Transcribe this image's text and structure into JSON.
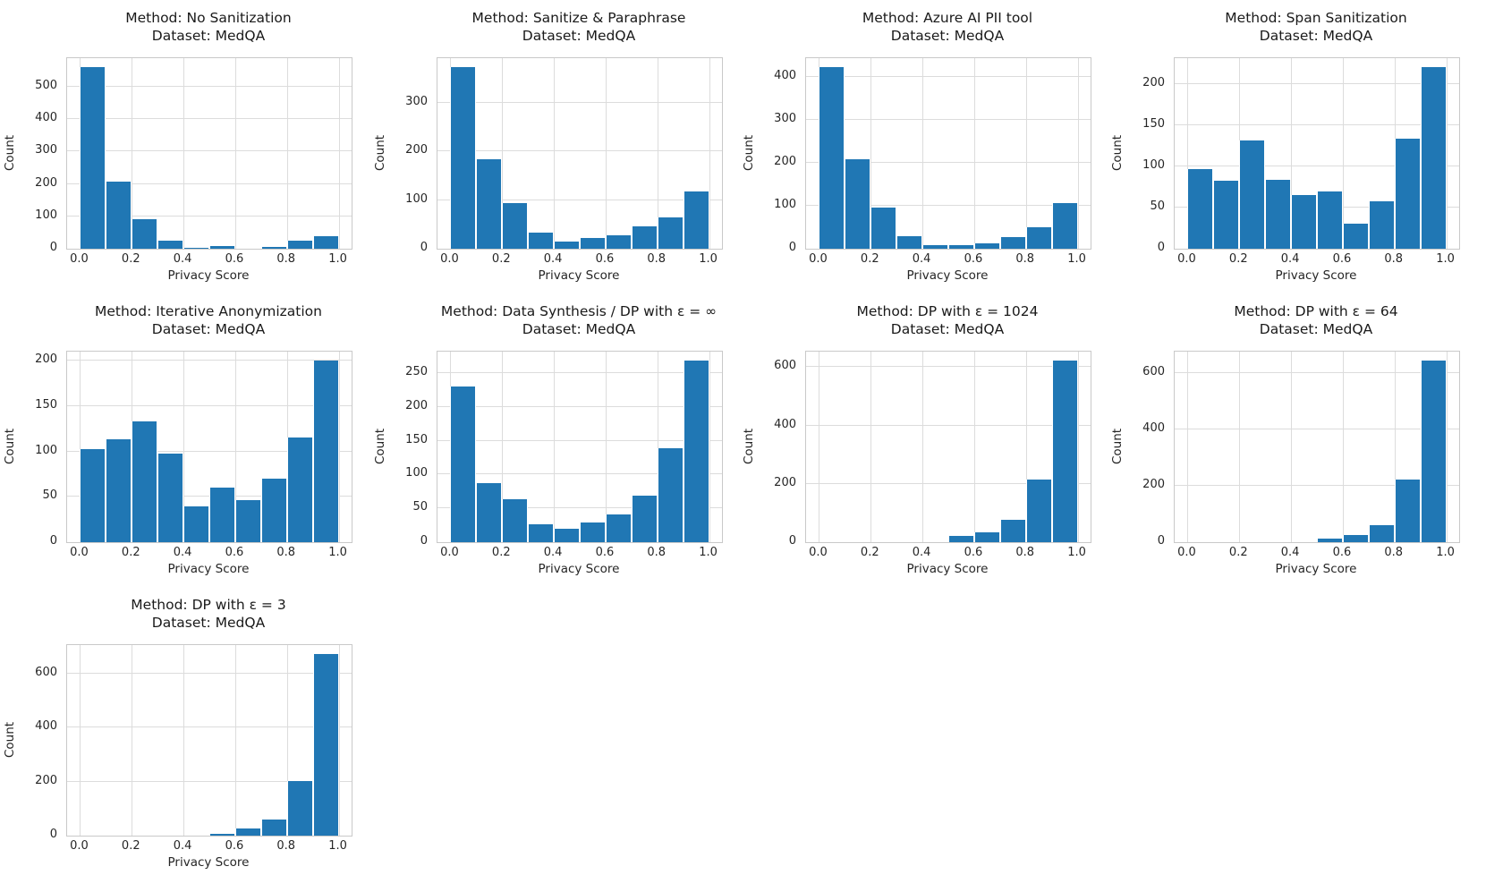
{
  "figure": {
    "background": "#ffffff",
    "bar_color": "#2077b4",
    "grid_color": "#dcdcdc",
    "spine_color": "#c9c9c9",
    "text_color": "#262626"
  },
  "chart_data": [
    {
      "type": "bar",
      "id": "no-sanitization",
      "row": 0,
      "col": 0,
      "title_lines": [
        "Method: No Sanitization",
        "Dataset: MedQA"
      ],
      "xlabel": "Privacy Score",
      "ylabel": "Count",
      "bin_start": 0.0,
      "bin_width": 0.1,
      "bin_edges": [
        0.0,
        0.1,
        0.2,
        0.3,
        0.4,
        0.5,
        0.6,
        0.7,
        0.8,
        0.9,
        1.0
      ],
      "values": [
        560,
        206,
        92,
        25,
        4,
        9,
        0,
        5,
        24,
        40
      ],
      "yticks": [
        0,
        100,
        200,
        300,
        400,
        500
      ],
      "ytick_labels": [
        "0",
        "100",
        "200",
        "300",
        "400",
        "500"
      ],
      "xticks": [
        0.0,
        0.2,
        0.4,
        0.6,
        0.8,
        1.0
      ],
      "xtick_labels": [
        "0.0",
        "0.2",
        "0.4",
        "0.6",
        "0.8",
        "1.0"
      ],
      "ylim": [
        0,
        588
      ],
      "xlim": [
        -0.05,
        1.05
      ],
      "grid": true
    },
    {
      "type": "bar",
      "id": "sanitize-paraphrase",
      "row": 0,
      "col": 1,
      "title_lines": [
        "Method: Sanitize & Paraphrase",
        "Dataset: MedQA"
      ],
      "xlabel": "Privacy Score",
      "ylabel": "Count",
      "bin_start": 0.0,
      "bin_width": 0.1,
      "bin_edges": [
        0.0,
        0.1,
        0.2,
        0.3,
        0.4,
        0.5,
        0.6,
        0.7,
        0.8,
        0.9,
        1.0
      ],
      "values": [
        372,
        183,
        93,
        33,
        15,
        22,
        27,
        45,
        65,
        118
      ],
      "yticks": [
        0,
        100,
        200,
        300
      ],
      "ytick_labels": [
        "0",
        "100",
        "200",
        "300"
      ],
      "xticks": [
        0.0,
        0.2,
        0.4,
        0.6,
        0.8,
        1.0
      ],
      "xtick_labels": [
        "0.0",
        "0.2",
        "0.4",
        "0.6",
        "0.8",
        "1.0"
      ],
      "ylim": [
        0,
        391
      ],
      "xlim": [
        -0.05,
        1.05
      ],
      "grid": true
    },
    {
      "type": "bar",
      "id": "azure-ai-pii-tool",
      "row": 0,
      "col": 2,
      "title_lines": [
        "Method: Azure AI PII tool",
        "Dataset: MedQA"
      ],
      "xlabel": "Privacy Score",
      "ylabel": "Count",
      "bin_start": 0.0,
      "bin_width": 0.1,
      "bin_edges": [
        0.0,
        0.1,
        0.2,
        0.3,
        0.4,
        0.5,
        0.6,
        0.7,
        0.8,
        0.9,
        1.0
      ],
      "values": [
        422,
        208,
        95,
        29,
        8,
        8,
        12,
        28,
        50,
        107
      ],
      "yticks": [
        0,
        100,
        200,
        300,
        400
      ],
      "ytick_labels": [
        "0",
        "100",
        "200",
        "300",
        "400"
      ],
      "xticks": [
        0.0,
        0.2,
        0.4,
        0.6,
        0.8,
        1.0
      ],
      "xtick_labels": [
        "0.0",
        "0.2",
        "0.4",
        "0.6",
        "0.8",
        "1.0"
      ],
      "ylim": [
        0,
        443
      ],
      "xlim": [
        -0.05,
        1.05
      ],
      "grid": true
    },
    {
      "type": "bar",
      "id": "span-sanitization",
      "row": 0,
      "col": 3,
      "title_lines": [
        "Method: Span Sanitization",
        "Dataset: MedQA"
      ],
      "xlabel": "Privacy Score",
      "ylabel": "Count",
      "bin_start": 0.0,
      "bin_width": 0.1,
      "bin_edges": [
        0.0,
        0.1,
        0.2,
        0.3,
        0.4,
        0.5,
        0.6,
        0.7,
        0.8,
        0.9,
        1.0
      ],
      "values": [
        97,
        83,
        132,
        84,
        65,
        70,
        31,
        58,
        134,
        221
      ],
      "yticks": [
        0,
        50,
        100,
        150,
        200
      ],
      "ytick_labels": [
        "0",
        "50",
        "100",
        "150",
        "200"
      ],
      "xticks": [
        0.0,
        0.2,
        0.4,
        0.6,
        0.8,
        1.0
      ],
      "xtick_labels": [
        "0.0",
        "0.2",
        "0.4",
        "0.6",
        "0.8",
        "1.0"
      ],
      "ylim": [
        0,
        232
      ],
      "xlim": [
        -0.05,
        1.05
      ],
      "grid": true
    },
    {
      "type": "bar",
      "id": "iterative-anonymization",
      "row": 1,
      "col": 0,
      "title_lines": [
        "Method: Iterative Anonymization",
        "Dataset: MedQA"
      ],
      "xlabel": "Privacy Score",
      "ylabel": "Count",
      "bin_start": 0.0,
      "bin_width": 0.1,
      "bin_edges": [
        0.0,
        0.1,
        0.2,
        0.3,
        0.4,
        0.5,
        0.6,
        0.7,
        0.8,
        0.9,
        1.0
      ],
      "values": [
        103,
        113,
        133,
        98,
        39,
        60,
        46,
        70,
        115,
        200
      ],
      "yticks": [
        0,
        50,
        100,
        150,
        200
      ],
      "ytick_labels": [
        "0",
        "50",
        "100",
        "150",
        "200"
      ],
      "xticks": [
        0.0,
        0.2,
        0.4,
        0.6,
        0.8,
        1.0
      ],
      "xtick_labels": [
        "0.0",
        "0.2",
        "0.4",
        "0.6",
        "0.8",
        "1.0"
      ],
      "ylim": [
        0,
        210
      ],
      "xlim": [
        -0.05,
        1.05
      ],
      "grid": true
    },
    {
      "type": "bar",
      "id": "data-synthesis-dp-infinity",
      "row": 1,
      "col": 1,
      "title_lines": [
        "Method: Data Synthesis / DP with ε = ∞",
        "Dataset: MedQA"
      ],
      "xlabel": "Privacy Score",
      "ylabel": "Count",
      "bin_start": 0.0,
      "bin_width": 0.1,
      "bin_edges": [
        0.0,
        0.1,
        0.2,
        0.3,
        0.4,
        0.5,
        0.6,
        0.7,
        0.8,
        0.9,
        1.0
      ],
      "values": [
        231,
        87,
        64,
        27,
        20,
        29,
        41,
        69,
        139,
        269
      ],
      "yticks": [
        0,
        50,
        100,
        150,
        200,
        250
      ],
      "ytick_labels": [
        "0",
        "50",
        "100",
        "150",
        "200",
        "250"
      ],
      "xticks": [
        0.0,
        0.2,
        0.4,
        0.6,
        0.8,
        1.0
      ],
      "xtick_labels": [
        "0.0",
        "0.2",
        "0.4",
        "0.6",
        "0.8",
        "1.0"
      ],
      "ylim": [
        0,
        282
      ],
      "xlim": [
        -0.05,
        1.05
      ],
      "grid": true
    },
    {
      "type": "bar",
      "id": "dp-epsilon-1024",
      "row": 1,
      "col": 2,
      "title_lines": [
        "Method: DP with ε = 1024",
        "Dataset: MedQA"
      ],
      "xlabel": "Privacy Score",
      "ylabel": "Count",
      "bin_start": 0.0,
      "bin_width": 0.1,
      "bin_edges": [
        0.0,
        0.1,
        0.2,
        0.3,
        0.4,
        0.5,
        0.6,
        0.7,
        0.8,
        0.9,
        1.0
      ],
      "values": [
        0,
        0,
        0,
        0,
        0,
        22,
        35,
        78,
        215,
        622
      ],
      "yticks": [
        0,
        200,
        400,
        600
      ],
      "ytick_labels": [
        "0",
        "200",
        "400",
        "600"
      ],
      "xticks": [
        0.0,
        0.2,
        0.4,
        0.6,
        0.8,
        1.0
      ],
      "xtick_labels": [
        "0.0",
        "0.2",
        "0.4",
        "0.6",
        "0.8",
        "1.0"
      ],
      "ylim": [
        0,
        653
      ],
      "xlim": [
        -0.05,
        1.05
      ],
      "grid": true
    },
    {
      "type": "bar",
      "id": "dp-epsilon-64",
      "row": 1,
      "col": 3,
      "title_lines": [
        "Method: DP with ε = 64",
        "Dataset: MedQA"
      ],
      "xlabel": "Privacy Score",
      "ylabel": "Count",
      "bin_start": 0.0,
      "bin_width": 0.1,
      "bin_edges": [
        0.0,
        0.1,
        0.2,
        0.3,
        0.4,
        0.5,
        0.6,
        0.7,
        0.8,
        0.9,
        1.0
      ],
      "values": [
        0,
        0,
        0,
        0,
        0,
        13,
        25,
        60,
        222,
        643
      ],
      "yticks": [
        0,
        200,
        400,
        600
      ],
      "ytick_labels": [
        "0",
        "200",
        "400",
        "600"
      ],
      "xticks": [
        0.0,
        0.2,
        0.4,
        0.6,
        0.8,
        1.0
      ],
      "xtick_labels": [
        "0.0",
        "0.2",
        "0.4",
        "0.6",
        "0.8",
        "1.0"
      ],
      "ylim": [
        0,
        675
      ],
      "xlim": [
        -0.05,
        1.05
      ],
      "grid": true
    },
    {
      "type": "bar",
      "id": "dp-epsilon-3",
      "row": 2,
      "col": 0,
      "title_lines": [
        "Method: DP with ε = 3",
        "Dataset: MedQA"
      ],
      "xlabel": "Privacy Score",
      "ylabel": "Count",
      "bin_start": 0.0,
      "bin_width": 0.1,
      "bin_edges": [
        0.0,
        0.1,
        0.2,
        0.3,
        0.4,
        0.5,
        0.6,
        0.7,
        0.8,
        0.9,
        1.0
      ],
      "values": [
        0,
        0,
        0,
        0,
        0,
        8,
        25,
        60,
        203,
        672
      ],
      "yticks": [
        0,
        200,
        400,
        600
      ],
      "ytick_labels": [
        "0",
        "200",
        "400",
        "600"
      ],
      "xticks": [
        0.0,
        0.2,
        0.4,
        0.6,
        0.8,
        1.0
      ],
      "xtick_labels": [
        "0.0",
        "0.2",
        "0.4",
        "0.6",
        "0.8",
        "1.0"
      ],
      "ylim": [
        0,
        706
      ],
      "xlim": [
        -0.05,
        1.05
      ],
      "grid": true
    }
  ]
}
